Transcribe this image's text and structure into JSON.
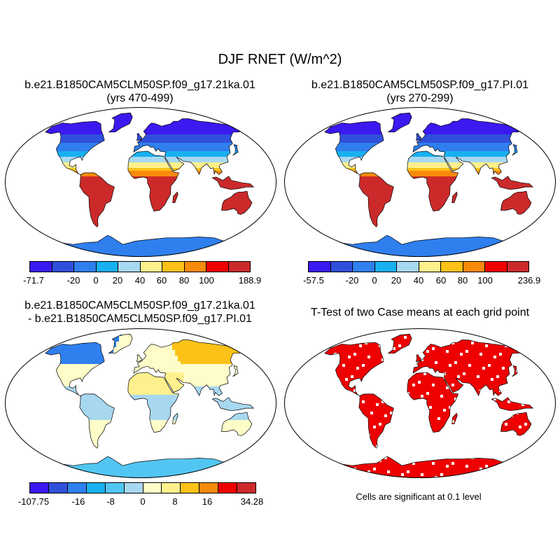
{
  "title": "DJF RNET (W/m^2)",
  "colors": {
    "palette": [
      "#3a1af0",
      "#3050dc",
      "#2f7fee",
      "#18b0f0",
      "#a8d8f0",
      "#fef08c",
      "#fcc218",
      "#f88a0c",
      "#ee0000",
      "#cc2a2a"
    ],
    "diff_palette": [
      "#3a1af0",
      "#3050dc",
      "#2f7fee",
      "#18b0f0",
      "#52c6f2",
      "#a8d8f0",
      "#fefcc8",
      "#fef08c",
      "#fcc218",
      "#f88a0c",
      "#ee0000",
      "#cc2a2a"
    ],
    "ocean": "#ffffff",
    "significant": "#ee0000"
  },
  "panels": {
    "top_left": {
      "title_line1": "b.e21.B1850CAM5CLM50SP.f09_g17.21ka.01",
      "title_line2": "(yrs 470-499)",
      "colorbar_ticks": [
        "-71.7",
        "-20",
        "0",
        "20",
        "40",
        "60",
        "80",
        "100",
        "188.9"
      ]
    },
    "top_right": {
      "title_line1": "b.e21.B1850CAM5CLM50SP.f09_g17.PI.01",
      "title_line2": "(yrs 270-299)",
      "colorbar_ticks": [
        "-57.5",
        "-20",
        "0",
        "20",
        "40",
        "60",
        "80",
        "100",
        "236.9"
      ]
    },
    "bottom_left": {
      "title_line1": "b.e21.B1850CAM5CLM50SP.f09_g17.21ka.01",
      "title_line2": "- b.e21.B1850CAM5CLM50SP.f09_g17.PI.01",
      "colorbar_ticks": [
        "-107.75",
        "-16",
        "-8",
        "0",
        "8",
        "16",
        "34.28"
      ]
    },
    "bottom_right": {
      "title_line1": "T-Test of two Case means at each grid point",
      "note": "Cells are significant at 0.1 level"
    }
  }
}
